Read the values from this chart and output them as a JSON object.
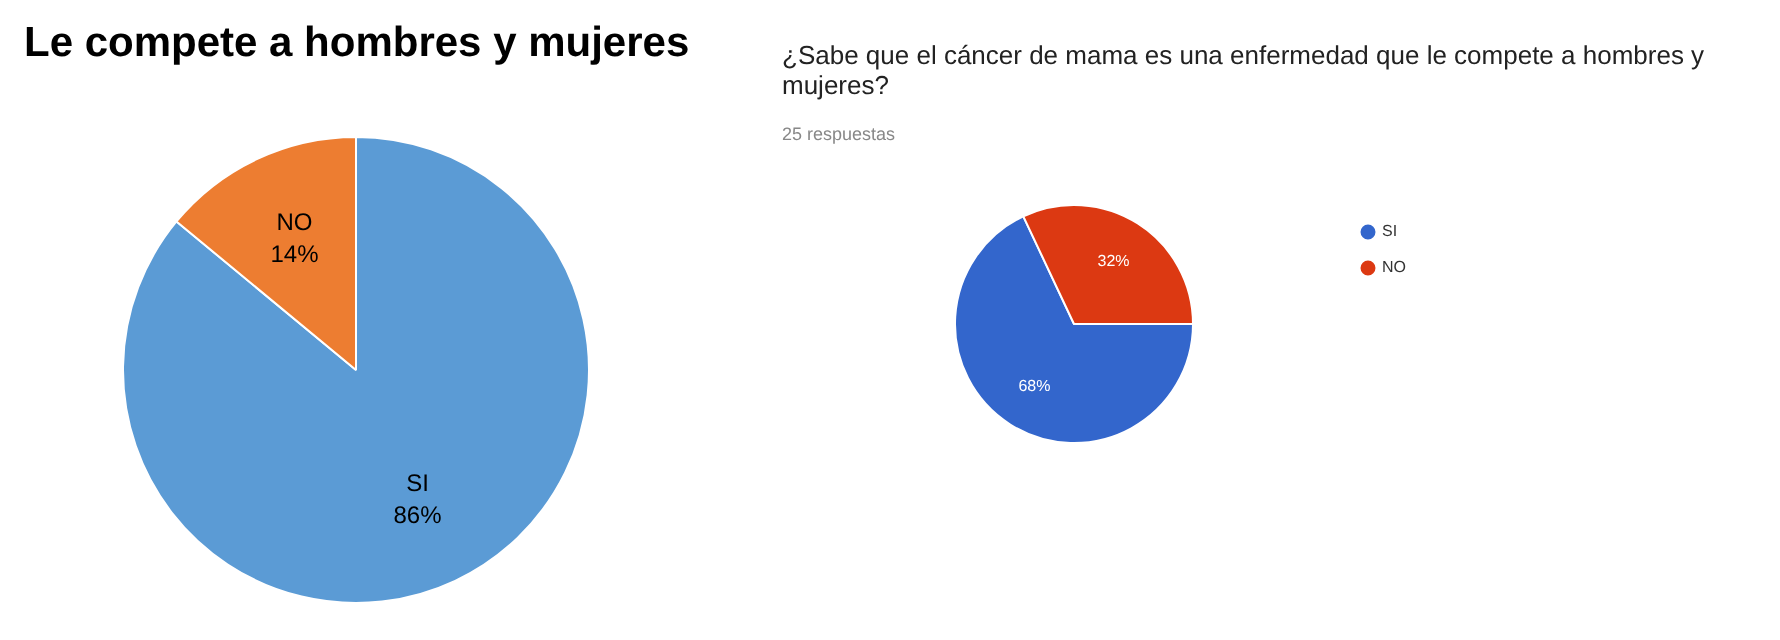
{
  "chart_data": [
    {
      "type": "pie",
      "title": "Le compete a hombres y mujeres",
      "categories": [
        "SI",
        "NO"
      ],
      "values": [
        86,
        14
      ],
      "colors": [
        "#5b9bd5",
        "#ed7d31"
      ],
      "value_labels": [
        "86%",
        "14%"
      ],
      "legend": false
    },
    {
      "type": "pie",
      "title": "¿Sabe que el cáncer de mama es una enfermedad que le compete a hombres y mujeres?",
      "subtitle": "25 respuestas",
      "categories": [
        "SI",
        "NO"
      ],
      "values": [
        68,
        32
      ],
      "colors": [
        "#3366cc",
        "#dc3912"
      ],
      "value_labels": [
        "68%",
        "32%"
      ],
      "legend": "right"
    }
  ]
}
